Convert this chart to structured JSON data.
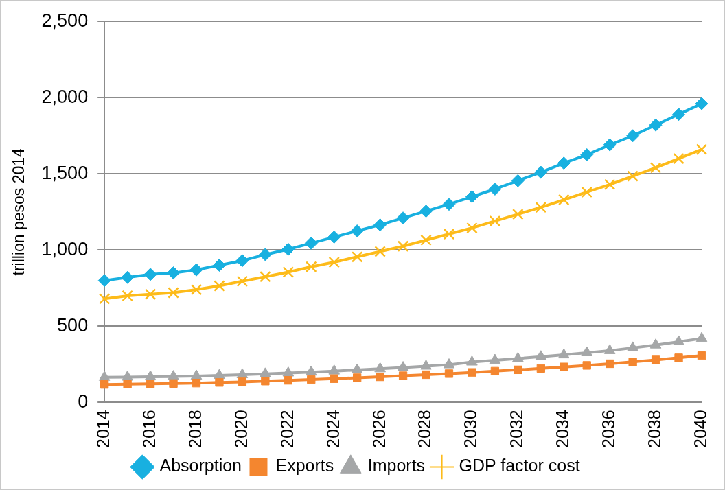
{
  "chart_data": {
    "type": "line",
    "ylabel": "trillion pesos 2014",
    "categories": [
      "2014",
      null,
      "2016",
      null,
      "2018",
      null,
      "2020",
      null,
      "2022",
      null,
      "2024",
      null,
      "2026",
      null,
      "2028",
      null,
      "2030",
      null,
      "2032",
      null,
      "2034",
      null,
      "2036",
      null,
      "2038",
      null,
      "2040"
    ],
    "series": [
      {
        "name": "Absorption",
        "color": "#18b0e0",
        "marker": "diamond",
        "values": [
          800,
          820,
          840,
          850,
          870,
          900,
          930,
          970,
          1005,
          1045,
          1085,
          1125,
          1165,
          1210,
          1255,
          1300,
          1350,
          1400,
          1455,
          1510,
          1570,
          1625,
          1690,
          1750,
          1820,
          1890,
          1960
        ]
      },
      {
        "name": "Exports",
        "color": "#f4862f",
        "marker": "square",
        "values": [
          118,
          120,
          122,
          124,
          127,
          131,
          135,
          140,
          145,
          150,
          156,
          162,
          168,
          175,
          182,
          189,
          197,
          205,
          214,
          223,
          233,
          243,
          254,
          266,
          279,
          293,
          307
        ]
      },
      {
        "name": "Imports",
        "color": "#a5a7a8",
        "marker": "triangle",
        "values": [
          165,
          166,
          168,
          170,
          173,
          177,
          182,
          187,
          193,
          199,
          206,
          213,
          221,
          229,
          238,
          247,
          265,
          276,
          288,
          300,
          312,
          326,
          340,
          358,
          377,
          398,
          420
        ]
      },
      {
        "name": "GDP factor cost",
        "color": "#fdbb1a",
        "marker": "cross",
        "values": [
          680,
          700,
          710,
          720,
          740,
          765,
          795,
          825,
          855,
          890,
          920,
          955,
          990,
          1025,
          1065,
          1105,
          1145,
          1190,
          1235,
          1280,
          1330,
          1380,
          1430,
          1485,
          1540,
          1600,
          1660
        ]
      }
    ],
    "ylim": [
      0,
      2500
    ],
    "yticks": [
      0,
      500,
      {
        "value": 1000,
        "label": "1,000"
      },
      {
        "value": 1500,
        "label": "1,500"
      },
      {
        "value": 2000,
        "label": "2,000"
      },
      {
        "value": 2500,
        "label": "2,500"
      }
    ],
    "grid": "y",
    "legend": "bottom"
  }
}
